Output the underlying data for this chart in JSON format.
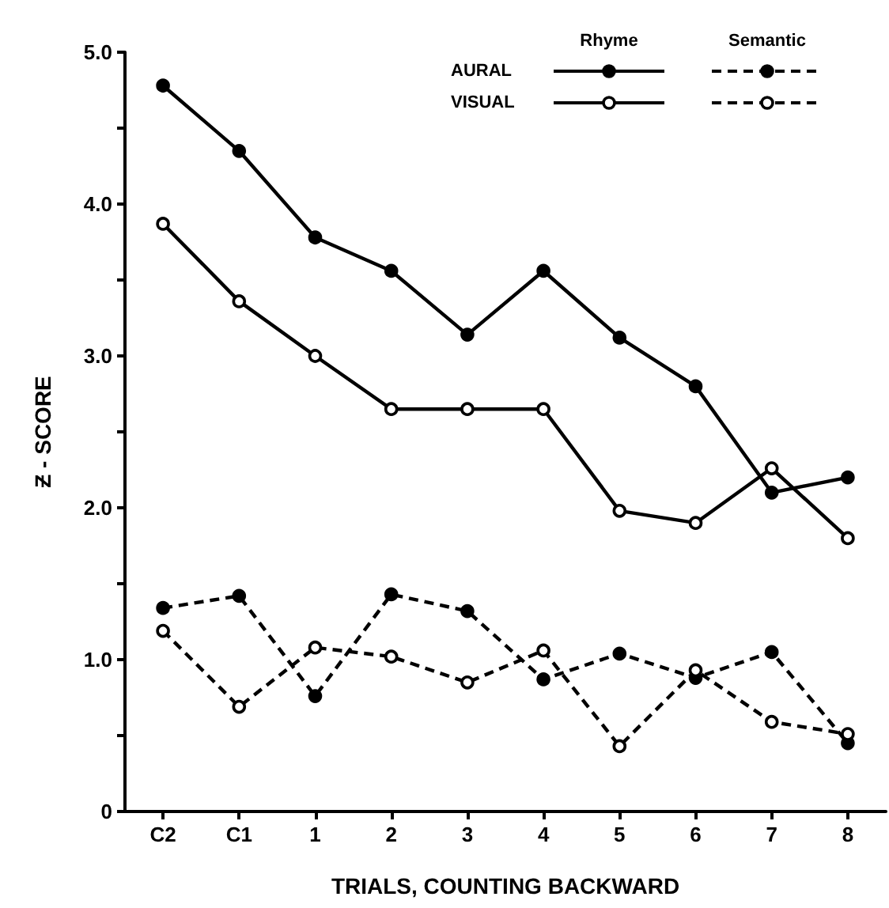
{
  "chart_data": {
    "type": "line",
    "xlabel": "TRIALS, COUNTING BACKWARD",
    "ylabel": "Ƶ - SCORE",
    "categories": [
      "C2",
      "C1",
      "1",
      "2",
      "3",
      "4",
      "5",
      "6",
      "7",
      "8"
    ],
    "ylim": [
      0,
      5.0
    ],
    "yticks": [
      0,
      {
        "value": 0.5,
        "label": null
      },
      {
        "value": 1,
        "label": "1.0"
      },
      {
        "value": 1.5,
        "label": null
      },
      {
        "value": 2,
        "label": "2.0"
      },
      {
        "value": 2.5,
        "label": null
      },
      {
        "value": 3,
        "label": "3.0"
      },
      {
        "value": 3.5,
        "label": null
      },
      {
        "value": 4,
        "label": "4.0"
      },
      {
        "value": 4.5,
        "label": null
      },
      {
        "value": 5,
        "label": "5.0"
      }
    ],
    "grid": false,
    "marker": "circle",
    "annotations": [
      "Rhyme",
      "Semantic",
      "AURAL",
      "VISUAL"
    ],
    "series": [
      {
        "color": "#000000",
        "line_style": "solid",
        "values": [
          4.78,
          4.35,
          3.78,
          3.56,
          3.14,
          3.56,
          3.12,
          2.8,
          2.1,
          2.2
        ]
      },
      {
        "color": "#000000",
        "line_style": "solid",
        "values": [
          3.87,
          3.36,
          3.0,
          2.65,
          2.65,
          2.65,
          1.98,
          1.9,
          2.26,
          1.8
        ]
      },
      {
        "color": "#000000",
        "line_style": "dashed",
        "values": [
          1.34,
          1.42,
          0.76,
          1.43,
          1.32,
          0.87,
          1.04,
          0.88,
          1.05,
          0.45
        ]
      },
      {
        "color": "#000000",
        "line_style": "dashed",
        "values": [
          1.19,
          0.69,
          1.08,
          1.02,
          0.85,
          1.06,
          0.43,
          0.93,
          0.59,
          0.51
        ]
      }
    ]
  }
}
